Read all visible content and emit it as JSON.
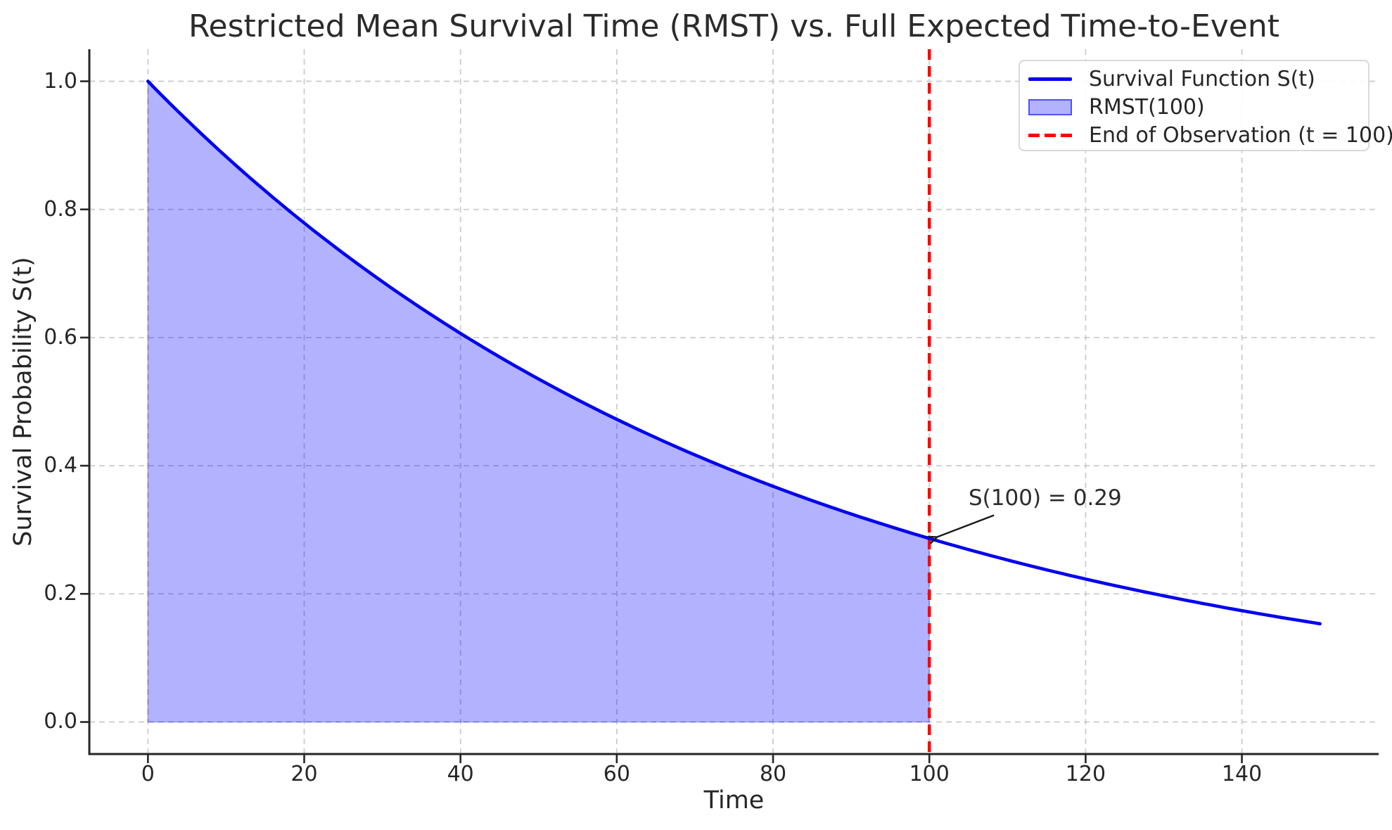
{
  "chart_data": {
    "type": "line",
    "title": "Restricted Mean Survival Time (RMST) vs. Full Expected Time-to-Event",
    "xlabel": "Time",
    "ylabel": "Survival Probability S(t)",
    "xlim": [
      -7.5,
      157.5
    ],
    "ylim": [
      -0.05,
      1.05
    ],
    "xticks": [
      0,
      20,
      40,
      60,
      80,
      100,
      120,
      140
    ],
    "yticks": [
      0.0,
      0.2,
      0.4,
      0.6,
      0.8,
      1.0
    ],
    "grid": "dashed, both axes",
    "series": [
      {
        "name": "Survival Function S(t)",
        "model": "exponential",
        "rate": 0.0125,
        "t_start": 0,
        "t_end": 150,
        "points": [
          [
            0,
            1.0
          ],
          [
            10,
            0.882
          ],
          [
            20,
            0.779
          ],
          [
            30,
            0.687
          ],
          [
            40,
            0.607
          ],
          [
            50,
            0.535
          ],
          [
            60,
            0.472
          ],
          [
            70,
            0.417
          ],
          [
            80,
            0.368
          ],
          [
            90,
            0.325
          ],
          [
            100,
            0.287
          ],
          [
            110,
            0.253
          ],
          [
            120,
            0.223
          ],
          [
            130,
            0.197
          ],
          [
            140,
            0.174
          ],
          [
            150,
            0.153
          ]
        ]
      }
    ],
    "shaded_region": {
      "label": "RMST(100)",
      "t_start": 0,
      "t_end": 100,
      "baseline": 0
    },
    "vline": {
      "x": 100,
      "label": "End of Observation (t = 100)"
    },
    "annotation": {
      "text": "S(100) = 0.29",
      "point": {
        "t": 100,
        "s": 0.2865
      }
    },
    "legend": {
      "position": "upper right",
      "entries": [
        {
          "type": "solid-line",
          "label": "Survival Function S(t)"
        },
        {
          "type": "patch",
          "label": "RMST(100)"
        },
        {
          "type": "dashed-line",
          "label": "End of Observation (t = 100)"
        }
      ]
    },
    "colors": {
      "line": "#0000ee",
      "fill": "rgba(0,0,255,0.30)",
      "fill_edge": "rgba(0,0,255,0.35)",
      "vline": "#ff0000",
      "grid": "#cccccc",
      "spine": "#262626",
      "text": "#262626",
      "arrow": "#1a1a1a"
    }
  }
}
